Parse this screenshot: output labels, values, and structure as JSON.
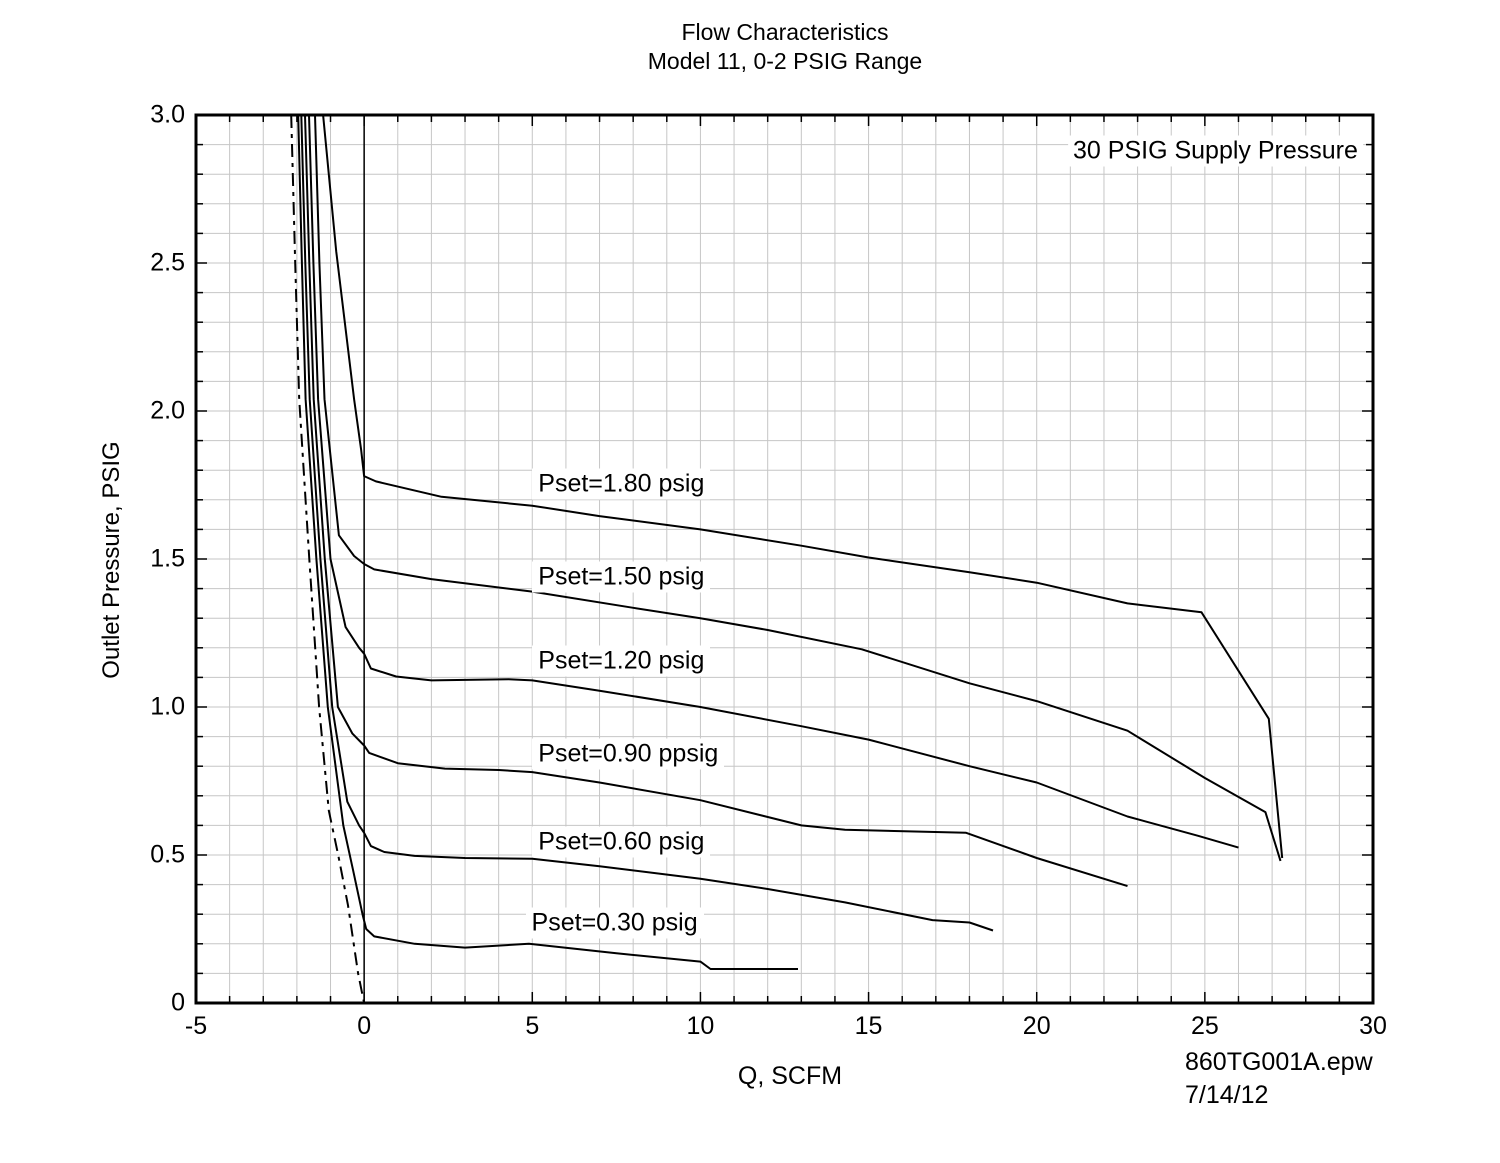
{
  "title": {
    "line1": "Flow Characteristics",
    "line2": "Model 11, 0-2 PSIG Range"
  },
  "annotation": "30 PSIG Supply Pressure",
  "footer": {
    "file": "860TG001A.epw",
    "date": "7/14/12"
  },
  "colors": {
    "curve": "#000000",
    "grid": "#c6c6c6",
    "border": "#000000",
    "background": "#ffffff"
  },
  "chart_data": {
    "type": "line",
    "title": "Flow Characteristics — Model 11, 0-2 PSIG Range",
    "xlabel": "Q, SCFM",
    "ylabel": "Outlet Pressure, PSIG",
    "xlim": [
      -5,
      30
    ],
    "ylim": [
      0,
      3
    ],
    "x_minor_step": 1,
    "y_minor_step": 0.1,
    "grid": true,
    "x_ticks": [
      {
        "value": -5,
        "label": "-5"
      },
      {
        "value": 0,
        "label": "0"
      },
      {
        "value": 5,
        "label": "5"
      },
      {
        "value": 10,
        "label": "10"
      },
      {
        "value": 15,
        "label": "15"
      },
      {
        "value": 20,
        "label": "20"
      },
      {
        "value": 25,
        "label": "25"
      },
      {
        "value": 30,
        "label": "30"
      }
    ],
    "y_ticks": [
      {
        "value": 0,
        "label": "0"
      },
      {
        "value": 0.5,
        "label": "0.5"
      },
      {
        "value": 1.0,
        "label": "1.0"
      },
      {
        "value": 1.5,
        "label": "1.5"
      },
      {
        "value": 2.0,
        "label": "2.0"
      },
      {
        "value": 2.5,
        "label": "2.5"
      },
      {
        "value": 3.0,
        "label": "3.0"
      }
    ],
    "series": [
      {
        "name": "dashed-left-curve",
        "dashed": true,
        "points": [
          [
            -2.17,
            3.0
          ],
          [
            -2.05,
            2.5
          ],
          [
            -1.93,
            2.04
          ],
          [
            -1.63,
            1.5
          ],
          [
            -1.34,
            1.0
          ],
          [
            -1.05,
            0.65
          ],
          [
            -0.77,
            0.5
          ],
          [
            -0.48,
            0.33
          ],
          [
            -0.18,
            0.1
          ],
          [
            0.0,
            0.0
          ]
        ]
      },
      {
        "name": "Pset=0.30 psig",
        "dashed": false,
        "points": [
          [
            -1.96,
            3.0
          ],
          [
            -1.85,
            2.5
          ],
          [
            -1.74,
            2.04
          ],
          [
            -1.42,
            1.5
          ],
          [
            -1.08,
            1.0
          ],
          [
            -0.62,
            0.6
          ],
          [
            -0.33,
            0.45
          ],
          [
            -0.05,
            0.3
          ],
          [
            0.06,
            0.25
          ],
          [
            0.3,
            0.225
          ],
          [
            1.5,
            0.2
          ],
          [
            3.0,
            0.187
          ],
          [
            4.9,
            0.2
          ],
          [
            7.5,
            0.168
          ],
          [
            10.0,
            0.14
          ],
          [
            10.3,
            0.115
          ],
          [
            12.9,
            0.115
          ]
        ]
      },
      {
        "name": "Pset=0.60 psig",
        "dashed": false,
        "points": [
          [
            -1.87,
            3.0
          ],
          [
            -1.75,
            2.5
          ],
          [
            -1.62,
            2.04
          ],
          [
            -1.3,
            1.5
          ],
          [
            -0.95,
            1.0
          ],
          [
            -0.5,
            0.68
          ],
          [
            -0.15,
            0.6
          ],
          [
            0.0,
            0.575
          ],
          [
            0.2,
            0.53
          ],
          [
            0.6,
            0.51
          ],
          [
            1.5,
            0.497
          ],
          [
            3.0,
            0.49
          ],
          [
            5.0,
            0.487
          ],
          [
            7.0,
            0.462
          ],
          [
            10.0,
            0.42
          ],
          [
            12.0,
            0.385
          ],
          [
            14.3,
            0.34
          ],
          [
            16.9,
            0.28
          ],
          [
            18.0,
            0.272
          ],
          [
            18.7,
            0.245
          ]
        ]
      },
      {
        "name": "Pset=0.90 psig",
        "dashed": false,
        "points": [
          [
            -1.76,
            3.0
          ],
          [
            -1.63,
            2.5
          ],
          [
            -1.5,
            2.04
          ],
          [
            -1.17,
            1.5
          ],
          [
            -0.78,
            1.0
          ],
          [
            -0.35,
            0.91
          ],
          [
            0.0,
            0.87
          ],
          [
            0.15,
            0.845
          ],
          [
            1.0,
            0.81
          ],
          [
            2.4,
            0.792
          ],
          [
            4.0,
            0.787
          ],
          [
            5.0,
            0.78
          ],
          [
            7.0,
            0.745
          ],
          [
            10.0,
            0.685
          ],
          [
            13.0,
            0.6
          ],
          [
            14.3,
            0.585
          ],
          [
            17.9,
            0.575
          ],
          [
            20.0,
            0.49
          ],
          [
            22.7,
            0.395
          ]
        ]
      },
      {
        "name": "Pset=1.20 psig",
        "dashed": false,
        "points": [
          [
            -1.64,
            3.0
          ],
          [
            -1.51,
            2.5
          ],
          [
            -1.37,
            2.04
          ],
          [
            -1.0,
            1.5
          ],
          [
            -0.55,
            1.27
          ],
          [
            -0.15,
            1.2
          ],
          [
            0.0,
            1.18
          ],
          [
            0.2,
            1.13
          ],
          [
            0.95,
            1.103
          ],
          [
            2.0,
            1.09
          ],
          [
            4.3,
            1.094
          ],
          [
            5.0,
            1.09
          ],
          [
            7.0,
            1.055
          ],
          [
            10.0,
            1.0
          ],
          [
            13.0,
            0.935
          ],
          [
            15.0,
            0.89
          ],
          [
            18.0,
            0.8
          ],
          [
            20.0,
            0.745
          ],
          [
            22.7,
            0.63
          ],
          [
            24.8,
            0.565
          ],
          [
            26.0,
            0.525
          ]
        ]
      },
      {
        "name": "Pset=1.50 psig",
        "dashed": false,
        "points": [
          [
            -1.46,
            3.0
          ],
          [
            -1.33,
            2.5
          ],
          [
            -1.18,
            2.04
          ],
          [
            -0.75,
            1.58
          ],
          [
            -0.3,
            1.51
          ],
          [
            0.0,
            1.483
          ],
          [
            0.3,
            1.465
          ],
          [
            2.0,
            1.432
          ],
          [
            5.0,
            1.39
          ],
          [
            8.0,
            1.335
          ],
          [
            10.0,
            1.3
          ],
          [
            12.0,
            1.26
          ],
          [
            14.8,
            1.195
          ],
          [
            18.0,
            1.08
          ],
          [
            20.0,
            1.02
          ],
          [
            22.7,
            0.92
          ],
          [
            25.0,
            0.76
          ],
          [
            26.8,
            0.645
          ],
          [
            27.25,
            0.48
          ]
        ]
      },
      {
        "name": "Pset=1.80 psig",
        "dashed": false,
        "points": [
          [
            -1.22,
            3.0
          ],
          [
            -0.83,
            2.54
          ],
          [
            -0.3,
            2.04
          ],
          [
            -0.09,
            1.87
          ],
          [
            0.0,
            1.78
          ],
          [
            0.35,
            1.762
          ],
          [
            2.3,
            1.71
          ],
          [
            5.0,
            1.68
          ],
          [
            7.0,
            1.645
          ],
          [
            10.0,
            1.6
          ],
          [
            13.0,
            1.545
          ],
          [
            15.0,
            1.505
          ],
          [
            18.0,
            1.455
          ],
          [
            20.0,
            1.42
          ],
          [
            22.7,
            1.35
          ],
          [
            24.9,
            1.32
          ],
          [
            26.9,
            0.96
          ],
          [
            27.3,
            0.49
          ]
        ]
      }
    ],
    "curve_labels": [
      {
        "text": "Pset=1.80 psig",
        "q": 5.0,
        "p": 1.755
      },
      {
        "text": "Pset=1.50 psig",
        "q": 5.0,
        "p": 1.44
      },
      {
        "text": "Pset=1.20 psig",
        "q": 5.0,
        "p": 1.155
      },
      {
        "text": "Pset=0.90 ppsig",
        "q": 5.0,
        "p": 0.84
      },
      {
        "text": "Pset=0.60 psig",
        "q": 5.0,
        "p": 0.545
      },
      {
        "text": "Pset=0.30 psig",
        "q": 4.8,
        "p": 0.27
      }
    ],
    "annotation": {
      "text": "30 PSIG Supply Pressure",
      "q": 29.7,
      "p": 2.88
    },
    "legend_position": "none"
  }
}
